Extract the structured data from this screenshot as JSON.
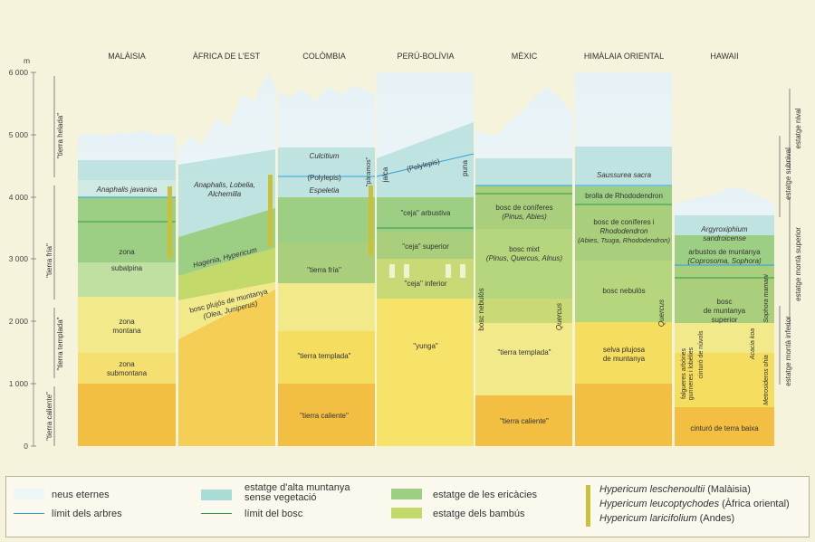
{
  "axis": {
    "unit": "m",
    "ticks": [
      "6 000",
      "5 000",
      "4 000",
      "3 000",
      "2 000",
      "1 000",
      "0"
    ]
  },
  "colors": {
    "snow": "#fafcfc",
    "alpine_no_veg": "#bfe3e0",
    "ericaceae": "#9ccf84",
    "bamboo": "#c3d96a",
    "forest_green": "#a9cf7c",
    "cloud_forest": "#c9d976",
    "light_yellow": "#f2ea8a",
    "yellow": "#f5dd60",
    "orange": "#f2bf42",
    "tree_line": "#2aa3e0",
    "forest_line": "#2f9a47",
    "hypericum": "#c9c13a"
  },
  "regions": [
    {
      "name": "MALÀISIA"
    },
    {
      "name": "ÀFRICA DE L'EST"
    },
    {
      "name": "COLÒMBIA"
    },
    {
      "name": "PERÚ-BOLÍVIA"
    },
    {
      "name": "MÈXIC"
    },
    {
      "name": "HIMÀLAIA ORIENTAL"
    },
    {
      "name": "HAWAII"
    }
  ],
  "labels": {
    "malaysia": {
      "anaphalis": "Anaphalis javanica",
      "zona": "zona",
      "subalpina": "subalpina",
      "zona_montana_1": "zona",
      "zona_montana_2": "montana",
      "zona_submontana_1": "zona",
      "zona_submontana_2": "submontana"
    },
    "east_africa": {
      "species_1": "Anaphalis, Lobelia,",
      "species_2": "Alchemilla",
      "hagenia": "Hagenia, Hypericum",
      "bosc_1": "bosc plujós de muntanya",
      "bosc_2": "(Olea, Juniperus)"
    },
    "colombia": {
      "culcitium": "Culcitium",
      "polylepis": "(Polylepis)",
      "espeletia": "Espeletia",
      "paramos": "\"pàramos\"",
      "tierra_fria": "\"tierra fría\"",
      "tierra_templada": "\"tierra templada\"",
      "tierra_caliente": "\"tierra caliente\""
    },
    "peru": {
      "jalca": "jalca",
      "polylepis": "(Polylepis)",
      "puna": "puna",
      "ceja_arbustiva": "\"ceja\" arbustiva",
      "ceja_superior": "\"ceja\" superior",
      "ceja_inferior": "\"ceja\" inferior",
      "yunga": "\"yunga\""
    },
    "mexico": {
      "coniferes_1": "bosc de coníferes",
      "coniferes_2": "(Pinus, Abies)",
      "mixt_1": "bosc mixt",
      "mixt_2": "(Pinus, Quercus, Alnus)",
      "bosc_nebulos": "bosc nebulós",
      "quercus": "Quercus",
      "tierra_templada": "\"tierra templada\"",
      "tierra_caliente": "\"tierra caliente\""
    },
    "himalaya": {
      "saussurea": "Saussurea sacra",
      "brolla": "brolla de Rhododendron",
      "coniferes_1": "bosc de coníferes i",
      "coniferes_2": "Rhododendron",
      "coniferes_3": "(Abies, Tsuga, Rhododendron)",
      "bosc_nebulos": "bosc nebulós",
      "quercus": "Quercus",
      "selva_1": "selva plujosa",
      "selva_2": "de muntanya"
    },
    "hawaii": {
      "argyro_1": "Argyroxiphium",
      "argyro_2": "sandroicense",
      "arbustos_1": "arbustos de muntanya",
      "arbustos_2": "(Coprosoma, Sophora)",
      "bosc_1": "bosc",
      "bosc_2": "de muntanya",
      "bosc_3": "superior",
      "sophora": "Sophora mamani",
      "acacia": "Acacia koa",
      "falgueres_1": "falgueres arbòries",
      "falgueres_2": "gunneres i lobèlies",
      "cinturo_nuvols": "cinturó de núvols",
      "metrosideros": "Metrosideros ohia",
      "cinturo": "cinturó de terra baixa"
    }
  },
  "left_zones": [
    "\"tierra helada\"",
    "\"tierra fría\"",
    "\"tierra templada\"",
    "\"tierra caliente\""
  ],
  "right_zones": [
    "estatge nival",
    "estatge subnival",
    "estatge montà superior",
    "estatge montà inferior"
  ],
  "legend": {
    "snow": "neus eternes",
    "tree_line": "límit dels arbres",
    "alpine_1": "estatge d'alta muntanya",
    "alpine_2": "sense vegetació",
    "forest_line": "límit del bosc",
    "ericaceae": "estatge de les ericàcies",
    "bamboo": "estatge dels bambús",
    "hyp_1": "Hypericum leschenoultii",
    "hyp_1_note": " (Malàisia)",
    "hyp_2": "Hypericum leucoptychodes",
    "hyp_2_note": " (Àfrica oriental)",
    "hyp_3": "Hypericum laricifolium",
    "hyp_3_note": " (Andes)"
  }
}
